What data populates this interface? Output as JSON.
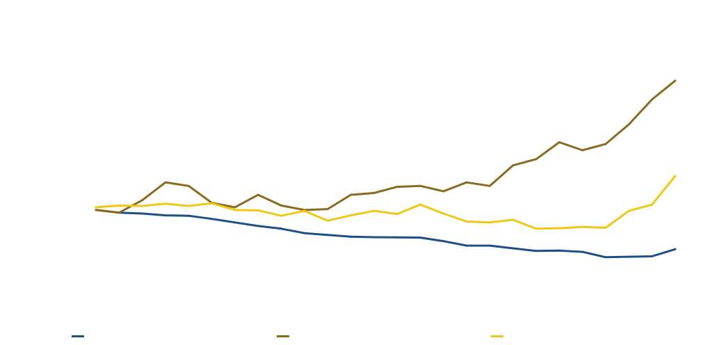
{
  "chart_data": {
    "type": "line",
    "title": "",
    "xlabel": "",
    "ylabel": "",
    "ylim": [
      0,
      3.2
    ],
    "grid": false,
    "legend_position": "bottom",
    "x": [
      1,
      2,
      3,
      4,
      5,
      6,
      7,
      8,
      9,
      10,
      11,
      12,
      13,
      14,
      15,
      16,
      17,
      18,
      19,
      20,
      21,
      22,
      23,
      24,
      25,
      26
    ],
    "series": [
      {
        "name": "",
        "color": "#1b4f8a",
        "values": [
          1.0,
          0.97,
          0.96,
          0.94,
          0.935,
          0.9,
          0.86,
          0.82,
          0.79,
          0.74,
          0.72,
          0.7,
          0.695,
          0.692,
          0.69,
          0.65,
          0.6,
          0.6,
          0.57,
          0.54,
          0.545,
          0.53,
          0.47,
          0.475,
          0.48,
          0.56
        ]
      },
      {
        "name": "",
        "color": "#8b6a1e",
        "values": [
          1.0,
          0.97,
          1.11,
          1.31,
          1.27,
          1.08,
          1.03,
          1.17,
          1.05,
          1.0,
          1.01,
          1.17,
          1.19,
          1.26,
          1.27,
          1.21,
          1.31,
          1.27,
          1.5,
          1.57,
          1.76,
          1.67,
          1.74,
          1.96,
          2.24,
          2.45
        ]
      },
      {
        "name": "",
        "color": "#f0c814",
        "values": [
          1.03,
          1.05,
          1.045,
          1.07,
          1.045,
          1.075,
          1.0,
          0.995,
          0.935,
          0.99,
          0.88,
          0.94,
          0.99,
          0.955,
          1.06,
          0.96,
          0.87,
          0.86,
          0.89,
          0.79,
          0.795,
          0.81,
          0.8,
          0.99,
          1.06,
          1.38
        ]
      }
    ]
  }
}
